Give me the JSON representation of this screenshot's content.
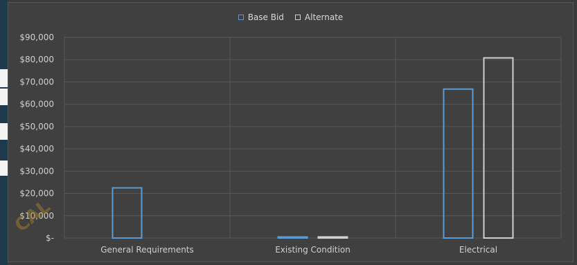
{
  "legend": {
    "base_label": "Base Bid",
    "alternate_label": "Alternate"
  },
  "colors": {
    "base": "#5b9bd5",
    "alternate": "#d0d0d0",
    "grid": "#575757",
    "background": "#404040"
  },
  "chart_data": {
    "type": "bar",
    "categories": [
      "General Requirements",
      "Existing Condition",
      "Electrical"
    ],
    "series": [
      {
        "name": "Base Bid",
        "values": [
          22500,
          500,
          66800
        ]
      },
      {
        "name": "Alternate",
        "values": [
          0,
          500,
          80800
        ]
      }
    ],
    "ylim": [
      0,
      90000
    ],
    "yticks": [
      0,
      10000,
      20000,
      30000,
      40000,
      50000,
      60000,
      70000,
      80000,
      90000
    ],
    "ytick_labels": [
      "$-",
      "$10,000",
      "$20,000",
      "$30,000",
      "$40,000",
      "$50,000",
      "$60,000",
      "$70,000",
      "$80,000",
      "$90,000"
    ],
    "grid": true,
    "legend_position": "top"
  }
}
